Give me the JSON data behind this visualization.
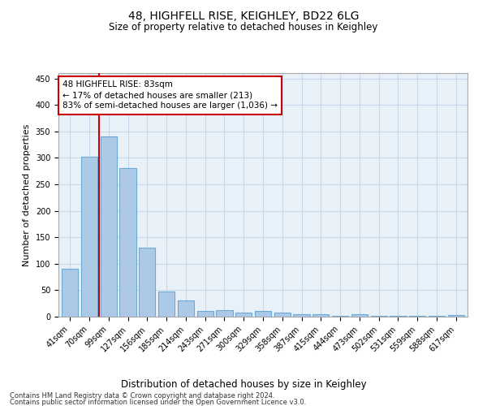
{
  "title1": "48, HIGHFELL RISE, KEIGHLEY, BD22 6LG",
  "title2": "Size of property relative to detached houses in Keighley",
  "xlabel": "Distribution of detached houses by size in Keighley",
  "ylabel": "Number of detached properties",
  "categories": [
    "41sqm",
    "70sqm",
    "99sqm",
    "127sqm",
    "156sqm",
    "185sqm",
    "214sqm",
    "243sqm",
    "271sqm",
    "300sqm",
    "329sqm",
    "358sqm",
    "387sqm",
    "415sqm",
    "444sqm",
    "473sqm",
    "502sqm",
    "531sqm",
    "559sqm",
    "588sqm",
    "617sqm"
  ],
  "values": [
    90,
    302,
    340,
    280,
    130,
    47,
    30,
    10,
    12,
    8,
    10,
    8,
    5,
    5,
    2,
    4,
    2,
    1,
    1,
    1,
    3
  ],
  "bar_color": "#adc9e8",
  "bar_edge_color": "#6aaad4",
  "annotation_text": "48 HIGHFELL RISE: 83sqm\n← 17% of detached houses are smaller (213)\n83% of semi-detached houses are larger (1,036) →",
  "annotation_box_facecolor": "#ffffff",
  "annotation_border_color": "#cc0000",
  "vline_color": "#cc0000",
  "vline_x": 1.5,
  "grid_color": "#c5d9ea",
  "background_color": "#e8f0f8",
  "ylim": [
    0,
    460
  ],
  "yticks": [
    0,
    50,
    100,
    150,
    200,
    250,
    300,
    350,
    400,
    450
  ],
  "footer_line1": "Contains HM Land Registry data © Crown copyright and database right 2024.",
  "footer_line2": "Contains public sector information licensed under the Open Government Licence v3.0.",
  "title1_fontsize": 10,
  "title2_fontsize": 8.5,
  "ylabel_fontsize": 8,
  "xlabel_fontsize": 8.5,
  "tick_fontsize": 7,
  "annot_fontsize": 7.5,
  "footer_fontsize": 6
}
